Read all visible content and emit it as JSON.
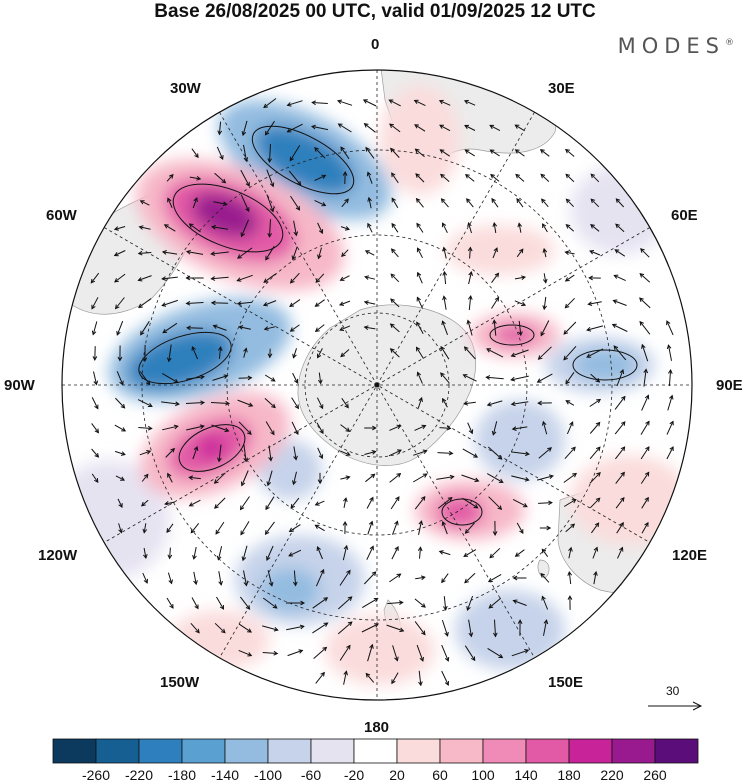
{
  "title": "Base 26/08/2025 00 UTC, valid 01/09/2025 12 UTC",
  "brand": {
    "name": "MODES",
    "mark": "®"
  },
  "longitude_labels": {
    "top": "0",
    "top_right": "30E",
    "right_upper": "60E",
    "right": "90E",
    "right_lower": "120E",
    "bottom_right": "150E",
    "bottom": "180",
    "bottom_left": "150W",
    "left_lower": "120W",
    "left": "90W",
    "left_upper": "60W",
    "top_left": "30W"
  },
  "reference_vector": {
    "value": "30"
  },
  "colorbar": {
    "labels": [
      "-260",
      "-220",
      "-180",
      "-140",
      "-100",
      "-60",
      "-20",
      "20",
      "60",
      "100",
      "140",
      "180",
      "220",
      "260"
    ],
    "colors": [
      "#0b3a5e",
      "#155f92",
      "#2d80bd",
      "#5aa0d0",
      "#93bce0",
      "#c6d3ea",
      "#e6e3f1",
      "#ffffff",
      "#fbdcdc",
      "#f7b8c8",
      "#f08ab6",
      "#e25aa6",
      "#c9239a",
      "#991a8e",
      "#5b0e7a"
    ]
  },
  "map_features": {
    "anomaly_highs": [
      "south-atlantic",
      "south-pacific-east",
      "indian-south",
      "tasman"
    ],
    "anomaly_lows": [
      "south-atlantic-west",
      "amundsen",
      "indian-east",
      "ross"
    ],
    "land": [
      "antarctica",
      "south-america",
      "africa",
      "australia",
      "new-zealand"
    ]
  }
}
